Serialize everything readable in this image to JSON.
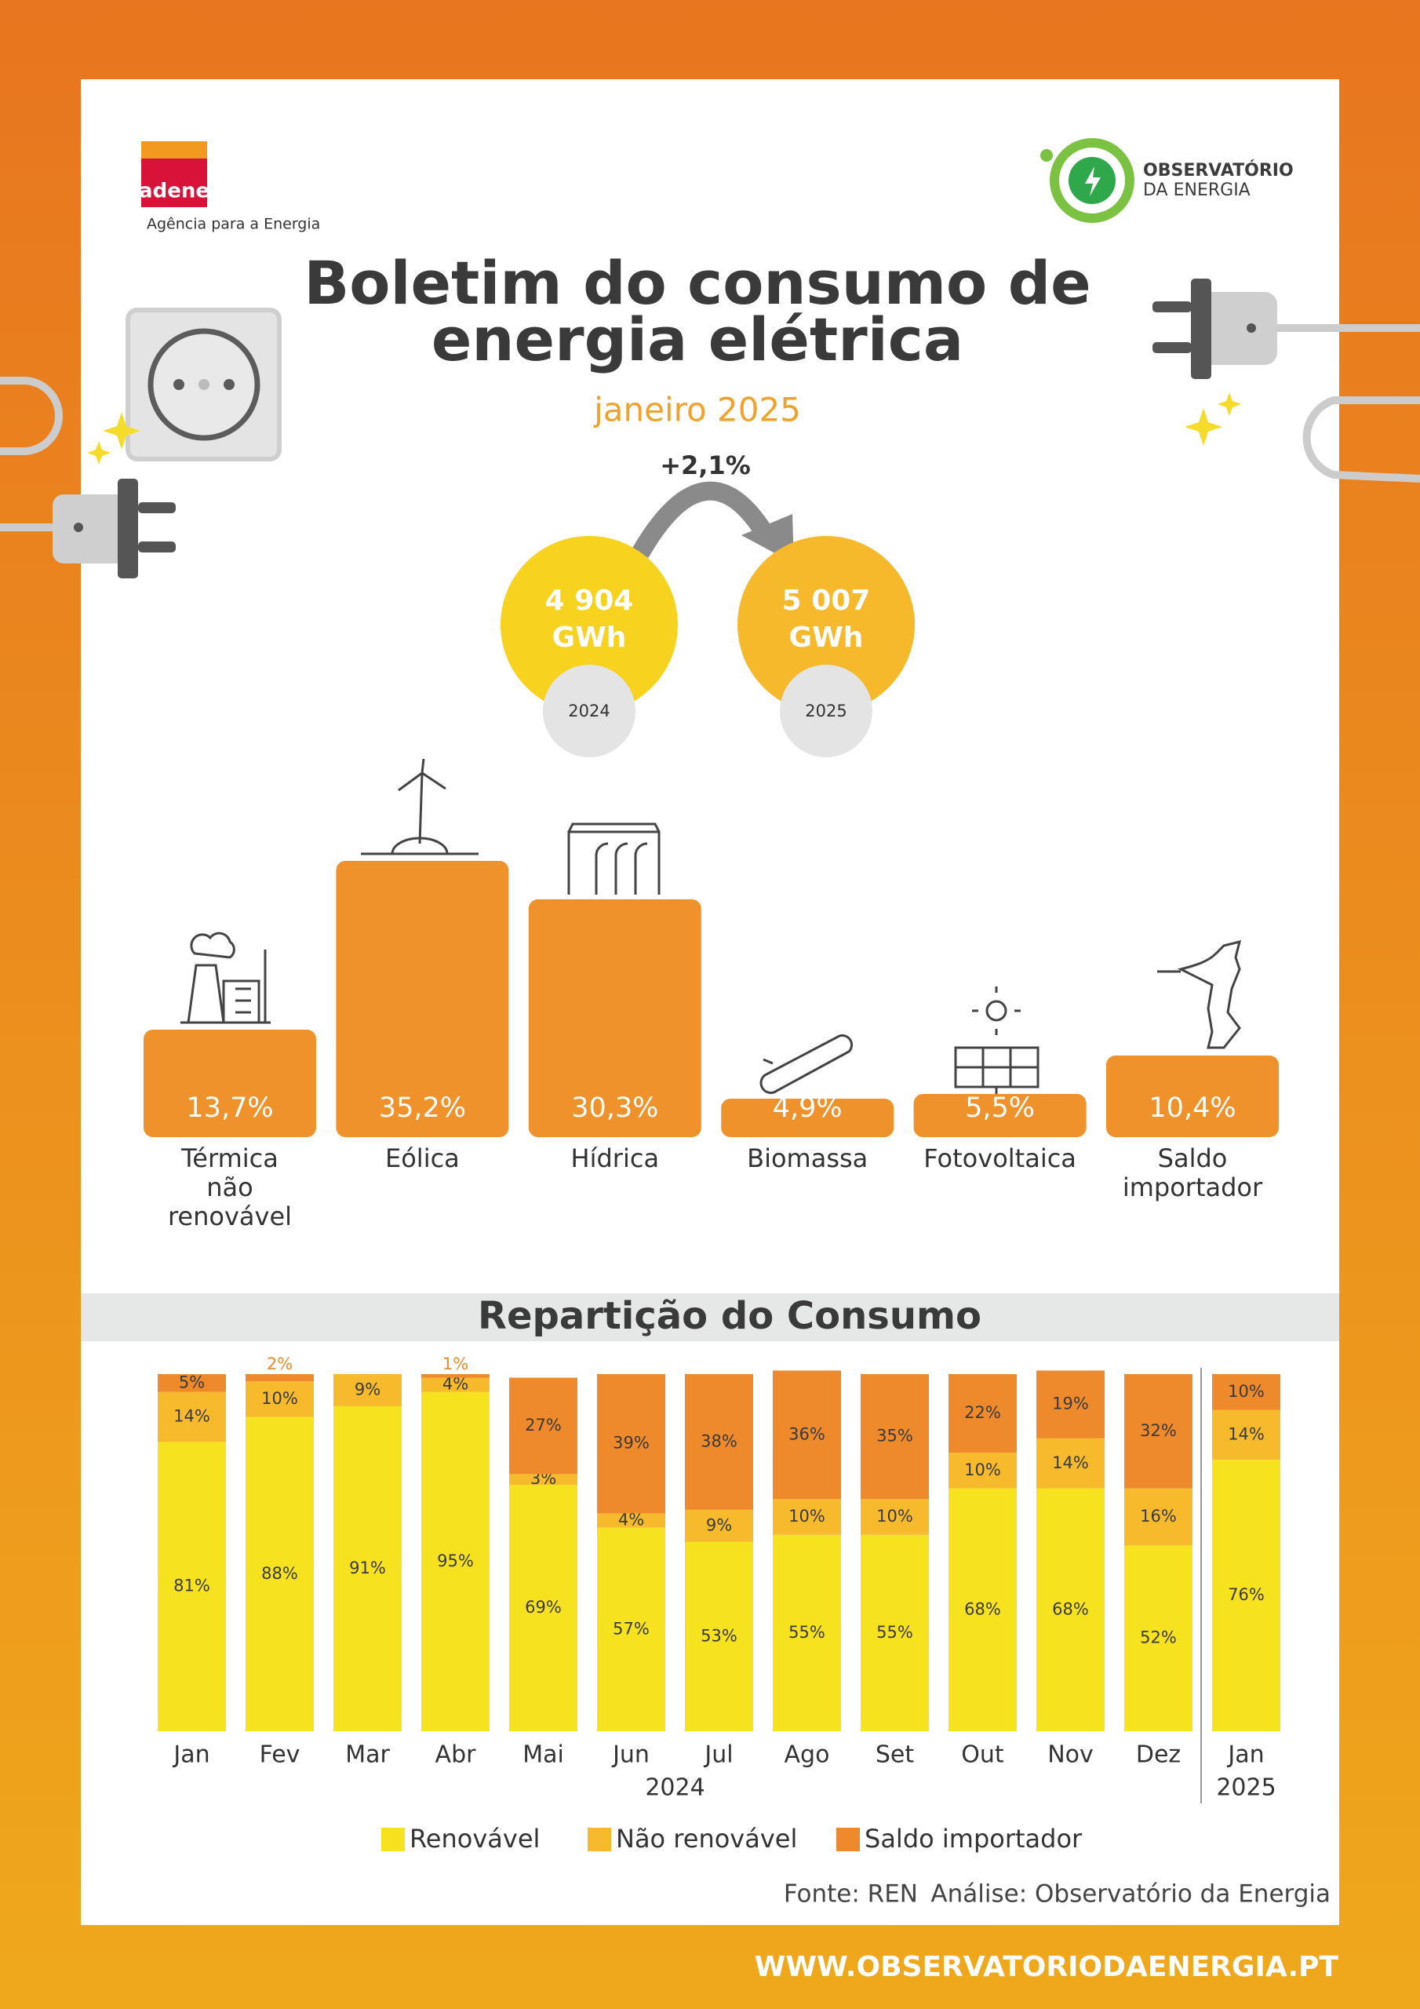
{
  "header": {
    "logo_left": "adene",
    "logo_left_caption": "Agência para a Energia",
    "logo_right_line1": "OBSERVATÓRIO",
    "logo_right_line2": "DA ENERGIA",
    "title_line1": "Boletim do consumo de",
    "title_line2": "energia elétrica",
    "subtitle": "janeiro 2025"
  },
  "comparison": {
    "change": "+2,1%",
    "items": [
      {
        "value": "4 904",
        "unit": "GWh",
        "year": "2024"
      },
      {
        "value": "5 007",
        "unit": "GWh",
        "year": "2025"
      }
    ]
  },
  "chart_data": [
    {
      "type": "bar",
      "categories": [
        "Térmica não renovável",
        "Eólica",
        "Hídrica",
        "Biomassa",
        "Fotovoltaica",
        "Saldo importador"
      ],
      "values": [
        13.7,
        35.2,
        30.3,
        4.9,
        5.5,
        10.4
      ],
      "value_labels": [
        "13,7%",
        "35,2%",
        "30,3%",
        "4,9%",
        "5,5%",
        "10,4%"
      ],
      "color": "#f0922b"
    },
    {
      "type": "stacked_bar",
      "title": "Repartição do Consumo",
      "categories": [
        "Jan",
        "Fev",
        "Mar",
        "Abr",
        "Mai",
        "Jun",
        "Jul",
        "Ago",
        "Set",
        "Out",
        "Nov",
        "Dez",
        "Jan"
      ],
      "year_labels": [
        "2024",
        "2025"
      ],
      "series": [
        {
          "name": "Renovável",
          "color": "#f7e21f",
          "values": [
            81,
            88,
            91,
            95,
            69,
            57,
            53,
            55,
            55,
            68,
            68,
            52,
            76
          ],
          "value_labels": [
            "81%",
            "88%",
            "91%",
            "95%",
            "69%",
            "57%",
            "53%",
            "55%",
            "55%",
            "68%",
            "68%",
            "52%",
            "76%"
          ]
        },
        {
          "name": "Não renovável",
          "color": "#f6ba2c",
          "values": [
            14,
            10,
            9,
            4,
            3,
            4,
            9,
            10,
            10,
            10,
            14,
            16,
            14
          ],
          "value_labels": [
            "14%",
            "10%",
            "9%",
            "4%",
            "3%",
            "4%",
            "9%",
            "10%",
            "10%",
            "10%",
            "14%",
            "16%",
            "14%"
          ]
        },
        {
          "name": "Saldo importador",
          "color": "#ee8a2c",
          "values": [
            5,
            2,
            null,
            1,
            27,
            39,
            38,
            36,
            35,
            22,
            19,
            32,
            10
          ],
          "value_labels": [
            "5%",
            "2%",
            null,
            "1%",
            "27%",
            "39%",
            "38%",
            "36%",
            "35%",
            "22%",
            "19%",
            "32%",
            "10%"
          ]
        }
      ]
    }
  ],
  "footer": {
    "source": "Fonte: REN",
    "analysis": "Análise: Observatório da Energia",
    "url": "WWW.OBSERVATORIODAENERGIA.PT"
  }
}
